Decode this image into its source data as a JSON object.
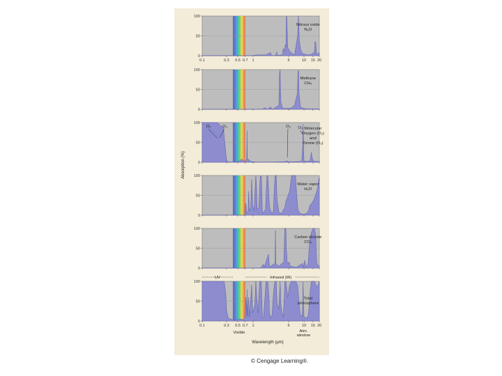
{
  "chart_data": {
    "type": "area",
    "xscale": "log",
    "xlim": [
      0.1,
      20
    ],
    "ylim": [
      0,
      100
    ],
    "ylabel": "Absorption (%)",
    "xlabel": "Wavelength (μm)",
    "yticks": [
      "0",
      "50",
      "100"
    ],
    "xticks": [
      {
        "value": 0.1,
        "label": "0.1"
      },
      {
        "value": 0.3,
        "label": "0.3"
      },
      {
        "value": 0.5,
        "label": "0.5"
      },
      {
        "value": 0.7,
        "label": "0.7"
      },
      {
        "value": 1,
        "label": "1"
      },
      {
        "value": 5,
        "label": "5"
      },
      {
        "value": 10,
        "label": "10"
      },
      {
        "value": 15,
        "label": "15"
      },
      {
        "value": 20,
        "label": "20"
      }
    ],
    "bands": {
      "uv": "UV",
      "infrared": "Infrared (IR)",
      "visible": "Visible",
      "atm_window": "Atm. window"
    },
    "colors": {
      "absorption": "#8c8ccf",
      "plot_bg": "#bdbdbd",
      "figure_bg": "#f3ecd9"
    },
    "panels": [
      {
        "name": "Nitrous oxide",
        "formula": "N₂O",
        "series": [
          [
            0.1,
            0
          ],
          [
            0.9,
            0
          ],
          [
            1.2,
            2
          ],
          [
            1.8,
            2
          ],
          [
            2.2,
            8
          ],
          [
            2.3,
            0
          ],
          [
            2.8,
            1
          ],
          [
            2.9,
            10
          ],
          [
            3.0,
            1
          ],
          [
            3.8,
            2
          ],
          [
            3.9,
            18
          ],
          [
            4.1,
            12
          ],
          [
            4.3,
            28
          ],
          [
            4.4,
            22
          ],
          [
            4.5,
            100
          ],
          [
            4.6,
            96
          ],
          [
            4.8,
            20
          ],
          [
            5.5,
            8
          ],
          [
            6.5,
            2
          ],
          [
            7.5,
            50
          ],
          [
            7.8,
            100
          ],
          [
            8.1,
            40
          ],
          [
            8.6,
            15
          ],
          [
            9.5,
            5
          ],
          [
            11,
            3
          ],
          [
            13,
            2
          ],
          [
            16,
            8
          ],
          [
            16.5,
            35
          ],
          [
            17,
            35
          ],
          [
            17.6,
            5
          ],
          [
            20,
            6
          ]
        ],
        "annotations": []
      },
      {
        "name": "Methane",
        "formula": "CH₄",
        "series": [
          [
            0.1,
            0
          ],
          [
            1.5,
            0
          ],
          [
            1.7,
            4
          ],
          [
            1.9,
            0
          ],
          [
            2.2,
            6
          ],
          [
            2.4,
            0
          ],
          [
            3.2,
            10
          ],
          [
            3.3,
            90
          ],
          [
            3.4,
            100
          ],
          [
            3.5,
            20
          ],
          [
            3.8,
            3
          ],
          [
            4.2,
            2
          ],
          [
            5.5,
            3
          ],
          [
            6.5,
            10
          ],
          [
            7.4,
            40
          ],
          [
            7.6,
            95
          ],
          [
            7.8,
            98
          ],
          [
            8,
            40
          ],
          [
            8.5,
            6
          ],
          [
            10,
            2
          ],
          [
            14,
            1
          ],
          [
            20,
            1
          ]
        ],
        "annotations": []
      },
      {
        "name": "Molecular oxygen (O₂) and ozone (O₃)",
        "formula": "",
        "series": [
          [
            0.1,
            100
          ],
          [
            0.2,
            100
          ],
          [
            0.23,
            92
          ],
          [
            0.26,
            88
          ],
          [
            0.29,
            25
          ],
          [
            0.3,
            8
          ],
          [
            0.31,
            3
          ],
          [
            0.33,
            1
          ],
          [
            0.45,
            0
          ],
          [
            0.55,
            4
          ],
          [
            0.6,
            8
          ],
          [
            0.65,
            3
          ],
          [
            0.69,
            1
          ],
          [
            0.7,
            0
          ],
          [
            0.75,
            10
          ],
          [
            0.76,
            80
          ],
          [
            0.77,
            10
          ],
          [
            0.9,
            2
          ],
          [
            1.3,
            0
          ],
          [
            4,
            1
          ],
          [
            4.6,
            3
          ],
          [
            4.75,
            3
          ],
          [
            5,
            1
          ],
          [
            9,
            2
          ],
          [
            9.4,
            40
          ],
          [
            9.6,
            96
          ],
          [
            9.8,
            40
          ],
          [
            10,
            3
          ],
          [
            13,
            2
          ],
          [
            14,
            25
          ],
          [
            14.3,
            15
          ],
          [
            15,
            4
          ],
          [
            17,
            2
          ],
          [
            20,
            2
          ]
        ],
        "annotations": [
          {
            "text": "O₂",
            "x": 0.12,
            "y": 88,
            "tx": 0.2,
            "ty": 60
          },
          {
            "text": "O₃",
            "x": 0.25,
            "y": 88,
            "tx": 0.22,
            "ty": 62
          },
          {
            "text": "O₃",
            "x": 4.4,
            "y": 88,
            "tx": 4.7,
            "ty": 12
          },
          {
            "text": "O₃",
            "x": 7.6,
            "y": 84,
            "tx": 9.5,
            "ty": 70
          }
        ],
        "label_lines": [
          "Molecular",
          "Oxygen (O₂)",
          "and",
          "Ozone (O₃)"
        ]
      },
      {
        "name": "Water vapor",
        "formula": "H₂O",
        "series": [
          [
            0.1,
            0
          ],
          [
            0.68,
            0
          ],
          [
            0.72,
            30
          ],
          [
            0.75,
            5
          ],
          [
            0.8,
            10
          ],
          [
            0.82,
            60
          ],
          [
            0.84,
            10
          ],
          [
            0.9,
            20
          ],
          [
            0.94,
            90
          ],
          [
            0.98,
            25
          ],
          [
            1.05,
            12
          ],
          [
            1.1,
            70
          ],
          [
            1.13,
            100
          ],
          [
            1.16,
            80
          ],
          [
            1.2,
            15
          ],
          [
            1.3,
            20
          ],
          [
            1.38,
            98
          ],
          [
            1.45,
            98
          ],
          [
            1.52,
            12
          ],
          [
            1.6,
            5
          ],
          [
            1.75,
            15
          ],
          [
            1.87,
            100
          ],
          [
            1.95,
            98
          ],
          [
            2.1,
            20
          ],
          [
            2.3,
            5
          ],
          [
            2.5,
            10
          ],
          [
            2.6,
            60
          ],
          [
            2.7,
            100
          ],
          [
            2.85,
            100
          ],
          [
            2.95,
            40
          ],
          [
            3.2,
            8
          ],
          [
            3.6,
            4
          ],
          [
            4.2,
            20
          ],
          [
            4.4,
            35
          ],
          [
            5.2,
            60
          ],
          [
            5.7,
            100
          ],
          [
            6.8,
            100
          ],
          [
            7.2,
            50
          ],
          [
            7.6,
            14
          ],
          [
            8.3,
            5
          ],
          [
            9.5,
            2
          ],
          [
            11.5,
            5
          ],
          [
            12.5,
            15
          ],
          [
            13,
            25
          ],
          [
            14.5,
            32
          ],
          [
            15.5,
            38
          ],
          [
            16.5,
            48
          ],
          [
            17.5,
            58
          ],
          [
            18.5,
            68
          ],
          [
            19.4,
            88
          ],
          [
            20,
            95
          ]
        ],
        "annotations": []
      },
      {
        "name": "Carbon dioxide",
        "formula": "CO₂",
        "series": [
          [
            0.1,
            0
          ],
          [
            1.4,
            0
          ],
          [
            1.5,
            6
          ],
          [
            1.6,
            10
          ],
          [
            1.65,
            2
          ],
          [
            2.0,
            35
          ],
          [
            2.1,
            3
          ],
          [
            2.7,
            12
          ],
          [
            2.75,
            95
          ],
          [
            2.8,
            10
          ],
          [
            3.2,
            5
          ],
          [
            4.0,
            15
          ],
          [
            4.2,
            100
          ],
          [
            4.4,
            100
          ],
          [
            4.5,
            50
          ],
          [
            4.7,
            12
          ],
          [
            5.2,
            15
          ],
          [
            5.3,
            5
          ],
          [
            7,
            2
          ],
          [
            9.4,
            12
          ],
          [
            9.8,
            2
          ],
          [
            10.4,
            20
          ],
          [
            10.8,
            3
          ],
          [
            12,
            10
          ],
          [
            13,
            70
          ],
          [
            14,
            90
          ],
          [
            15,
            100
          ],
          [
            16,
            100
          ],
          [
            17,
            85
          ],
          [
            17.5,
            30
          ],
          [
            18,
            8
          ],
          [
            20,
            6
          ]
        ],
        "annotations": []
      },
      {
        "name": "Total atmosphere",
        "formula": "",
        "series": [
          [
            0.1,
            100
          ],
          [
            0.27,
            100
          ],
          [
            0.29,
            70
          ],
          [
            0.3,
            30
          ],
          [
            0.32,
            10
          ],
          [
            0.35,
            5
          ],
          [
            0.45,
            2
          ],
          [
            0.55,
            5
          ],
          [
            0.65,
            3
          ],
          [
            0.7,
            12
          ],
          [
            0.72,
            60
          ],
          [
            0.75,
            15
          ],
          [
            0.76,
            80
          ],
          [
            0.78,
            10
          ],
          [
            0.82,
            60
          ],
          [
            0.85,
            10
          ],
          [
            0.94,
            90
          ],
          [
            0.98,
            20
          ],
          [
            1.08,
            40
          ],
          [
            1.13,
            100
          ],
          [
            1.18,
            60
          ],
          [
            1.25,
            20
          ],
          [
            1.35,
            100
          ],
          [
            1.45,
            100
          ],
          [
            1.52,
            10
          ],
          [
            1.6,
            8
          ],
          [
            1.8,
            100
          ],
          [
            1.95,
            98
          ],
          [
            2.05,
            60
          ],
          [
            2.1,
            20
          ],
          [
            2.2,
            8
          ],
          [
            2.35,
            15
          ],
          [
            2.55,
            80
          ],
          [
            2.7,
            100
          ],
          [
            2.85,
            100
          ],
          [
            2.95,
            45
          ],
          [
            3.2,
            30
          ],
          [
            3.4,
            100
          ],
          [
            3.5,
            45
          ],
          [
            3.7,
            20
          ],
          [
            3.9,
            10
          ],
          [
            4.1,
            60
          ],
          [
            4.2,
            100
          ],
          [
            4.4,
            100
          ],
          [
            4.6,
            80
          ],
          [
            4.8,
            60
          ],
          [
            5.2,
            90
          ],
          [
            5.6,
            100
          ],
          [
            6.9,
            100
          ],
          [
            7.5,
            90
          ],
          [
            8,
            45
          ],
          [
            8.4,
            18
          ],
          [
            9.2,
            10
          ],
          [
            9.4,
            40
          ],
          [
            9.6,
            100
          ],
          [
            9.8,
            40
          ],
          [
            10,
            10
          ],
          [
            11,
            8
          ],
          [
            12,
            12
          ],
          [
            12.7,
            40
          ],
          [
            13.3,
            80
          ],
          [
            14,
            100
          ],
          [
            16,
            100
          ],
          [
            17,
            92
          ],
          [
            18.5,
            85
          ],
          [
            19.5,
            95
          ],
          [
            20,
            100
          ]
        ],
        "annotations": [],
        "label_lines": [
          "Total",
          "atmosphere"
        ]
      }
    ]
  },
  "credit": "© Cengage Learning®."
}
